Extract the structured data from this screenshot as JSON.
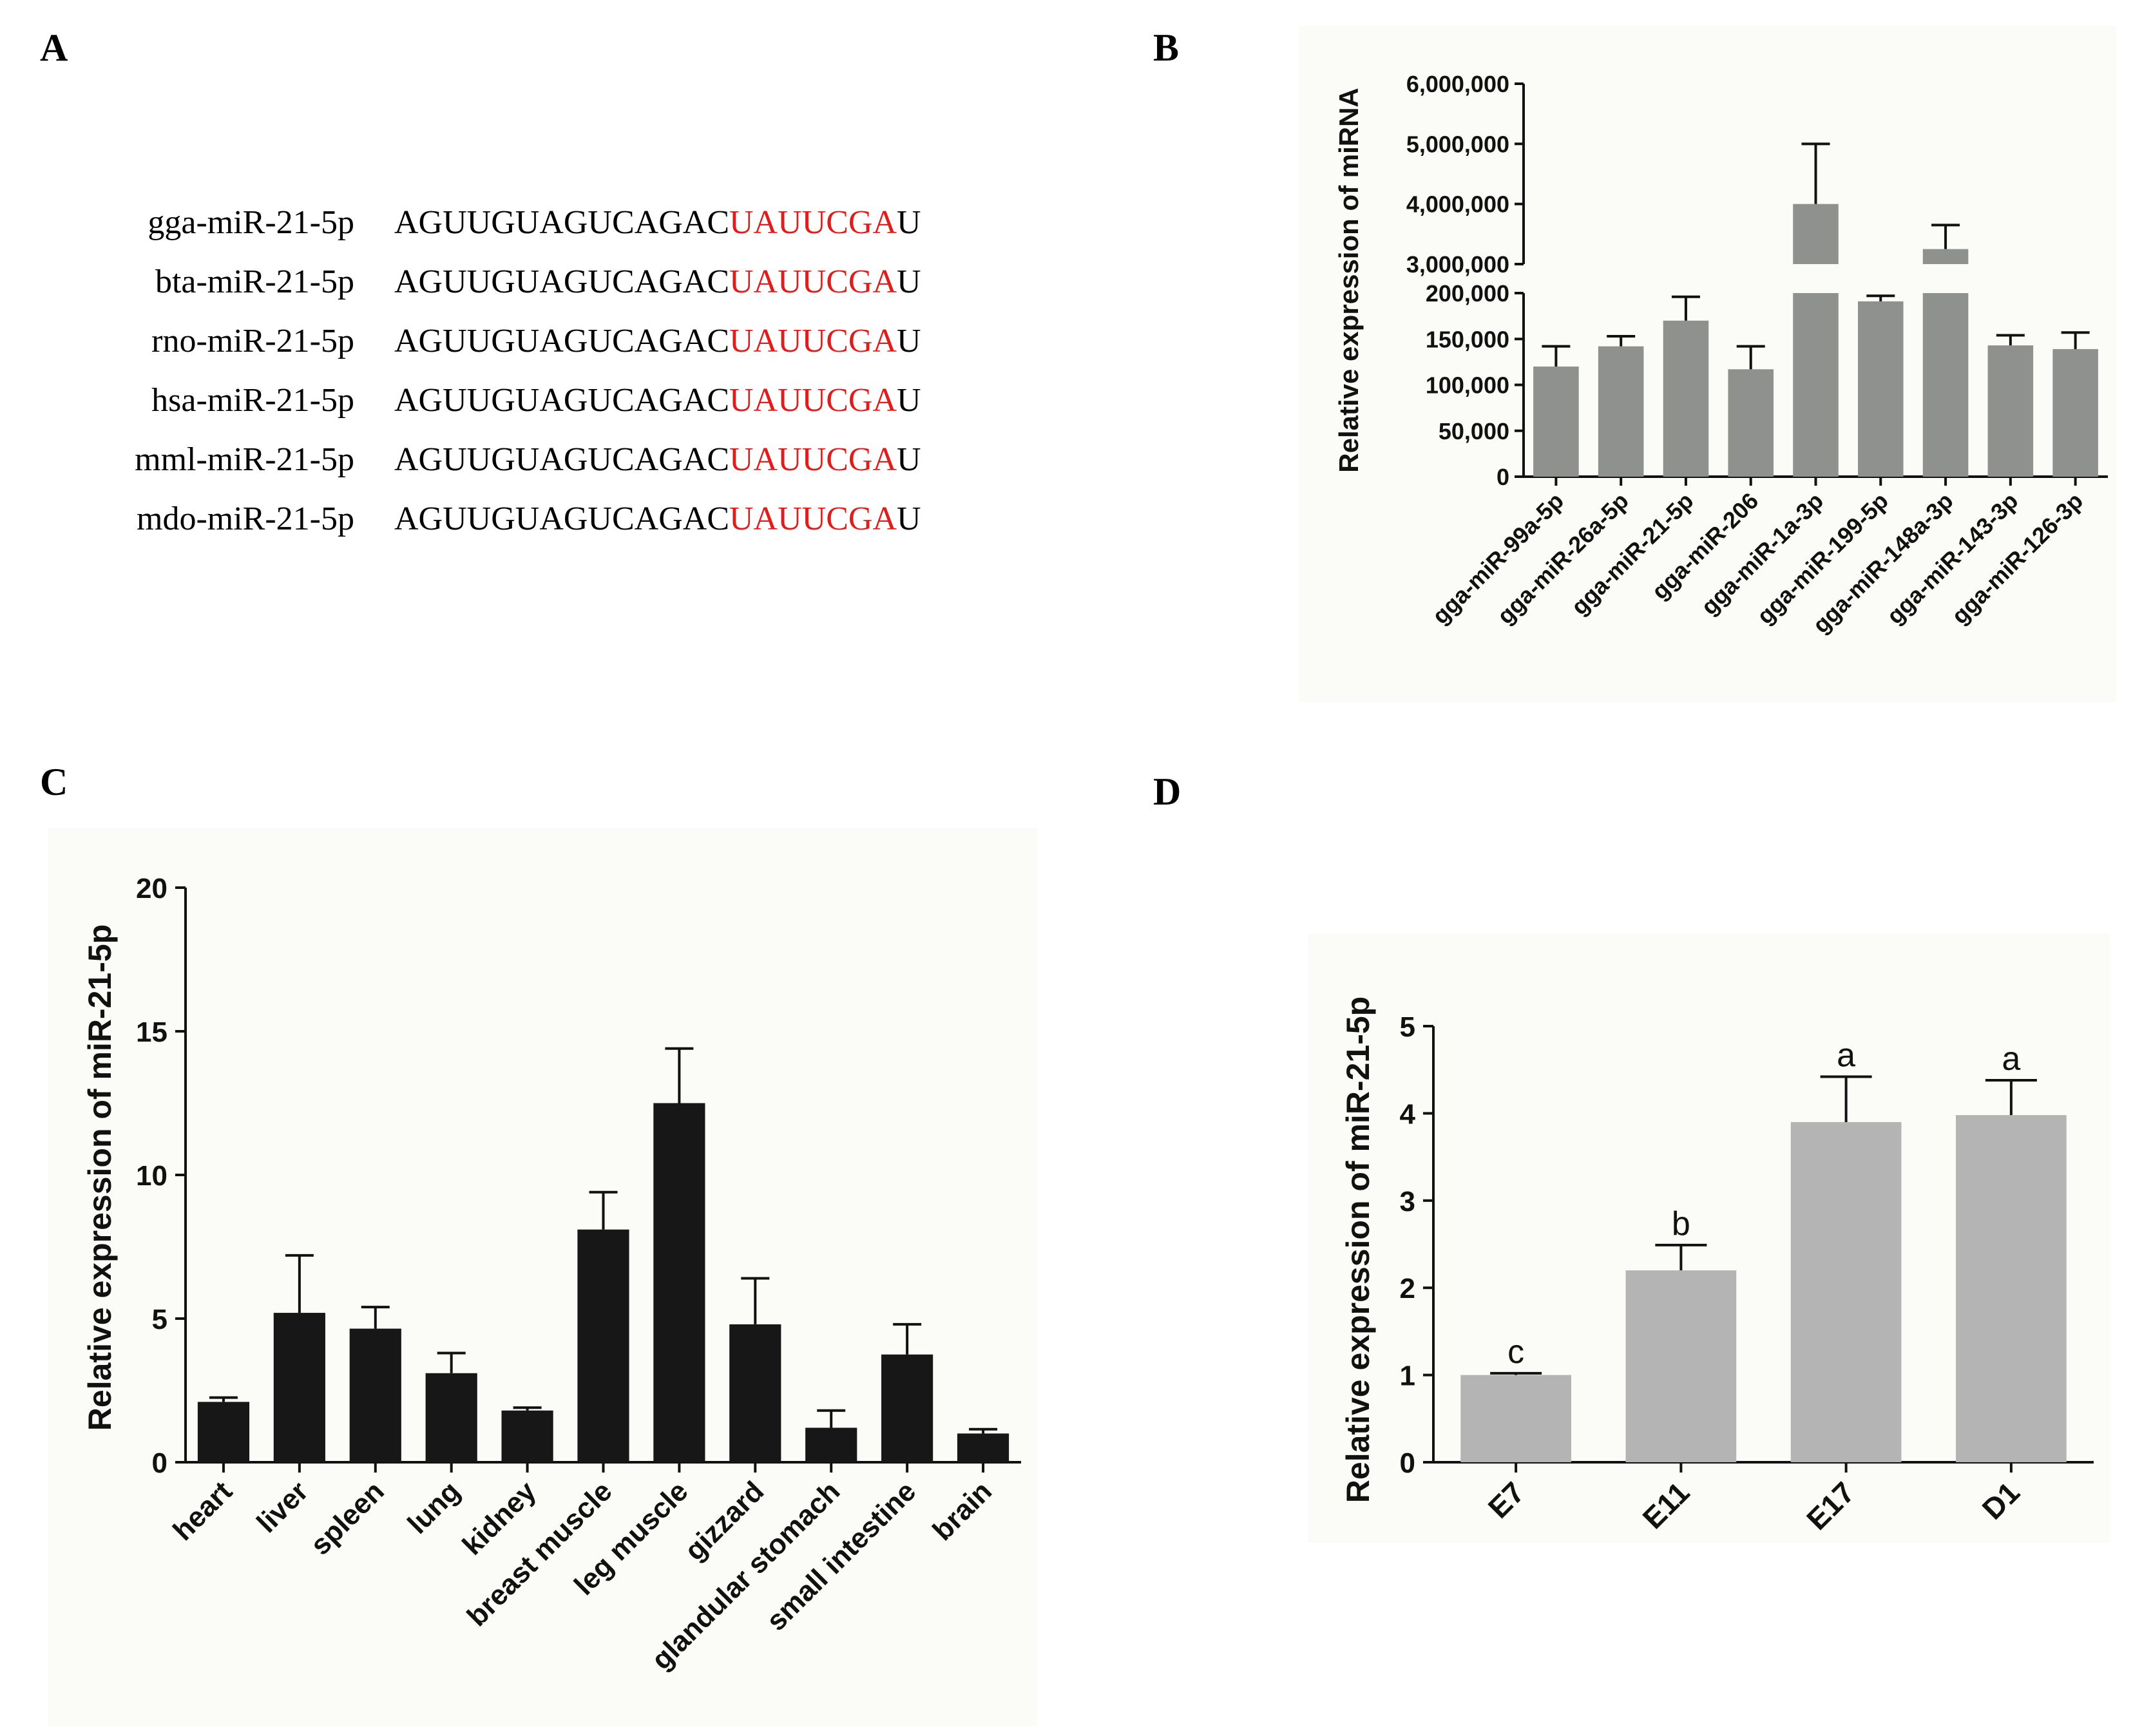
{
  "panels": {
    "A": "A",
    "B": "B",
    "C": "C",
    "D": "D"
  },
  "sequences": [
    {
      "name": "gga-miR-21-5p",
      "pre": "AGUUGUAGUCAGAC",
      "seed": "UAUUCGA",
      "post": "U"
    },
    {
      "name": "bta-miR-21-5p",
      "pre": "AGUUGUAGUCAGAC",
      "seed": "UAUUCGA",
      "post": "U"
    },
    {
      "name": "rno-miR-21-5p",
      "pre": "AGUUGUAGUCAGAC",
      "seed": "UAUUCGA",
      "post": "U"
    },
    {
      "name": "hsa-miR-21-5p",
      "pre": "AGUUGUAGUCAGAC",
      "seed": "UAUUCGA",
      "post": "U"
    },
    {
      "name": "mml-miR-21-5p",
      "pre": "AGUUGUAGUCAGAC",
      "seed": "UAUUCGA",
      "post": "U"
    },
    {
      "name": "mdo-miR-21-5p",
      "pre": "AGUUGUAGUCAGAC",
      "seed": "UAUUCGA",
      "post": "U"
    }
  ],
  "colors": {
    "seed": "#e21b1b",
    "barB": "#8f918f",
    "barC": "#171717",
    "barD": "#b4b4b4"
  },
  "chart_data": [
    {
      "panel": "B",
      "type": "bar",
      "ylabel": "Relative expression of miRNA",
      "categories": [
        "gga-miR-99a-5p",
        "gga-miR-26a-5p",
        "gga-miR-21-5p",
        "gga-miR-206",
        "gga-miR-1a-3p",
        "gga-miR-199-5p",
        "gga-miR-148a-3p",
        "gga-miR-143-3p",
        "gga-miR-126-3p"
      ],
      "values": [
        120000,
        142000,
        170000,
        117000,
        4000000,
        191000,
        3250000,
        143000,
        139000
      ],
      "errors": [
        22000,
        11000,
        26000,
        25000,
        1000000,
        6000,
        400000,
        11000,
        18000
      ],
      "broken_axis": true,
      "lower_range": [
        0,
        200000
      ],
      "upper_range": [
        3000000,
        6000000
      ],
      "lower_ticks": [
        "0",
        "50,000",
        "100,000",
        "150,000",
        "200,000"
      ],
      "upper_ticks": [
        "3,000,000",
        "4,000,000",
        "5,000,000",
        "6,000,000"
      ]
    },
    {
      "panel": "C",
      "type": "bar",
      "ylabel": "Relative expression of miR-21-5p",
      "categories": [
        "heart",
        "liver",
        "spleen",
        "lung",
        "kidney",
        "breast muscle",
        "leg muscle",
        "gizzard",
        "glandular stomach",
        "small intestine",
        "brain"
      ],
      "values": [
        2.1,
        5.2,
        4.65,
        3.1,
        1.8,
        8.1,
        12.5,
        4.8,
        1.2,
        3.75,
        1.0
      ],
      "errors": [
        0.15,
        2.0,
        0.75,
        0.7,
        0.1,
        1.3,
        1.9,
        1.6,
        0.6,
        1.05,
        0.15
      ],
      "ylim": [
        0,
        20
      ],
      "yticks": [
        "0",
        "5",
        "10",
        "15",
        "20"
      ]
    },
    {
      "panel": "D",
      "type": "bar",
      "ylabel": "Relative expression of miR-21-5p",
      "categories": [
        "E7",
        "E11",
        "E17",
        "D1"
      ],
      "values": [
        1.0,
        2.2,
        3.9,
        3.98
      ],
      "errors": [
        0.02,
        0.29,
        0.52,
        0.4
      ],
      "letters": [
        "c",
        "b",
        "a",
        "a"
      ],
      "ylim": [
        0,
        5
      ],
      "yticks": [
        "0",
        "1",
        "2",
        "3",
        "4",
        "5"
      ]
    }
  ]
}
